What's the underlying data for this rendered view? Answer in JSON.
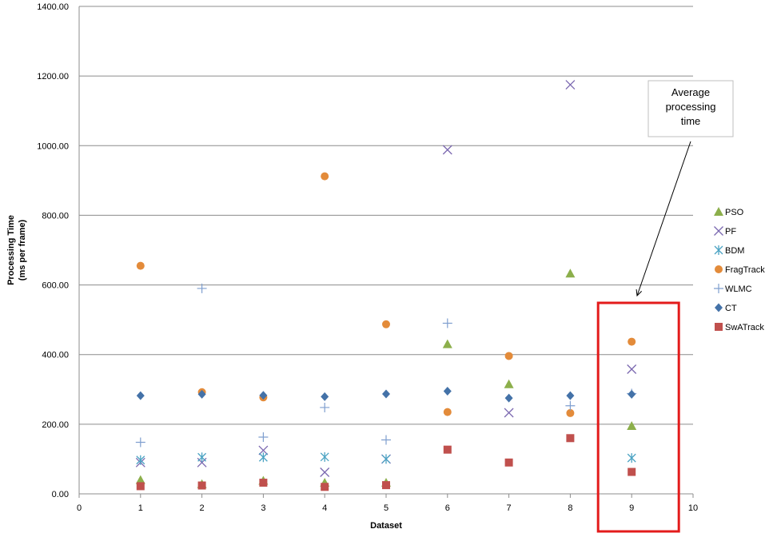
{
  "chart_data": {
    "type": "scatter",
    "title": "",
    "xlabel": "Dataset",
    "ylabel": [
      "Processing Time",
      "(ms per frame)"
    ],
    "xlim": [
      0,
      10
    ],
    "ylim": [
      0,
      1400
    ],
    "x_ticks": [
      "0",
      "1",
      "2",
      "3",
      "4",
      "5",
      "6",
      "7",
      "8",
      "9",
      "10"
    ],
    "y_ticks": [
      "0.00",
      "200.00",
      "400.00",
      "600.00",
      "800.00",
      "1000.00",
      "1200.00",
      "1400.00"
    ],
    "grid": "horizontal",
    "legend_position": "right",
    "series": [
      {
        "name": "PSO",
        "marker": "triangle",
        "color": "#8CAF4B",
        "points": [
          [
            1,
            40
          ],
          [
            2,
            28
          ],
          [
            3,
            38
          ],
          [
            4,
            32
          ],
          [
            5,
            32
          ],
          [
            6,
            430
          ],
          [
            7,
            315
          ],
          [
            8,
            633
          ],
          [
            9,
            195
          ]
        ]
      },
      {
        "name": "PF",
        "marker": "x",
        "color": "#7B68B0",
        "points": [
          [
            1,
            90
          ],
          [
            2,
            90
          ],
          [
            3,
            125
          ],
          [
            4,
            62
          ],
          [
            5,
            100
          ],
          [
            6,
            988
          ],
          [
            7,
            233
          ],
          [
            8,
            1175
          ],
          [
            9,
            358
          ]
        ]
      },
      {
        "name": "BDM",
        "marker": "asterisk",
        "color": "#4BA3C3",
        "points": [
          [
            1,
            97
          ],
          [
            2,
            105
          ],
          [
            3,
            105
          ],
          [
            4,
            106
          ],
          [
            5,
            100
          ],
          [
            9,
            103
          ]
        ]
      },
      {
        "name": "FragTrack",
        "marker": "circle",
        "color": "#E38B3A",
        "points": [
          [
            1,
            655
          ],
          [
            2,
            292
          ],
          [
            3,
            277
          ],
          [
            4,
            912
          ],
          [
            5,
            487
          ],
          [
            6,
            235
          ],
          [
            7,
            396
          ],
          [
            8,
            232
          ],
          [
            9,
            437
          ]
        ]
      },
      {
        "name": "WLMC",
        "marker": "plus",
        "color": "#7F9FCF",
        "points": [
          [
            1,
            148
          ],
          [
            2,
            590
          ],
          [
            3,
            163
          ],
          [
            4,
            248
          ],
          [
            5,
            155
          ],
          [
            6,
            490
          ],
          [
            8,
            253
          ],
          [
            9,
            288
          ]
        ]
      },
      {
        "name": "CT",
        "marker": "diamond",
        "color": "#4472A8",
        "points": [
          [
            1,
            282
          ],
          [
            2,
            286
          ],
          [
            3,
            283
          ],
          [
            4,
            279
          ],
          [
            5,
            287
          ],
          [
            6,
            295
          ],
          [
            7,
            275
          ],
          [
            8,
            282
          ],
          [
            9,
            286
          ]
        ]
      },
      {
        "name": "SwATrack",
        "marker": "square",
        "color": "#C0504D",
        "points": [
          [
            1,
            22
          ],
          [
            2,
            24
          ],
          [
            3,
            32
          ],
          [
            4,
            20
          ],
          [
            5,
            25
          ],
          [
            6,
            127
          ],
          [
            7,
            90
          ],
          [
            8,
            160
          ],
          [
            9,
            63
          ]
        ]
      }
    ],
    "annotation": {
      "lines": [
        "Average",
        "processing",
        "time"
      ],
      "target_dataset": 9
    }
  },
  "colors": {
    "gridline": "#8c8c8c",
    "highlight_box": "#e31b1b"
  }
}
